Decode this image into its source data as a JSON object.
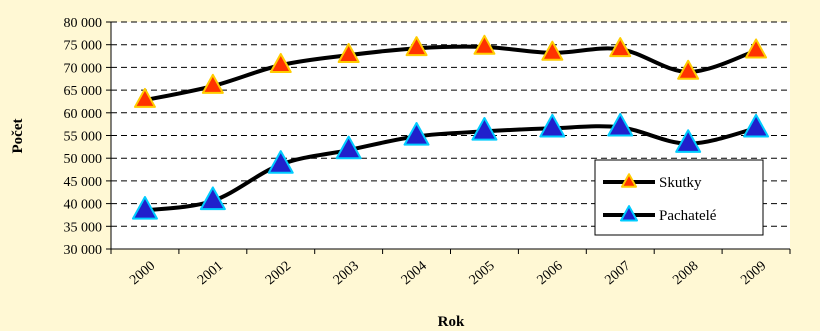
{
  "chart_data": {
    "type": "line",
    "title": "",
    "xlabel": "Rok",
    "ylabel": "Počet",
    "categories": [
      "2000",
      "2001",
      "2002",
      "2003",
      "2004",
      "2005",
      "2006",
      "2007",
      "2008",
      "2009"
    ],
    "ylim": [
      30000,
      80000
    ],
    "ytick_step": 5000,
    "ytick_labels": [
      "30 000",
      "35 000",
      "40 000",
      "45 000",
      "50 000",
      "55 000",
      "60 000",
      "65 000",
      "70 000",
      "75 000",
      "80 000"
    ],
    "grid": "horizontal dashed",
    "legend_position": "bottom-right",
    "series": [
      {
        "name": "Skutky",
        "values": [
          62800,
          65900,
          70500,
          72700,
          74200,
          74500,
          73200,
          74000,
          69000,
          73700
        ],
        "marker": "triangle",
        "marker_fill": "#FF3300",
        "marker_edge": "#FFCC00",
        "line_color": "#000000"
      },
      {
        "name": "Pachatelé",
        "values": [
          38500,
          40600,
          48600,
          51800,
          54800,
          55900,
          56600,
          56800,
          53200,
          56600
        ],
        "marker": "triangle",
        "marker_fill": "#2020CC",
        "marker_edge": "#00CCFF",
        "line_color": "#000000"
      }
    ]
  },
  "colors": {
    "background": "#FFF8D4",
    "plot_background": "#FFFFFF",
    "line": "#000000",
    "grid": "#000000"
  }
}
